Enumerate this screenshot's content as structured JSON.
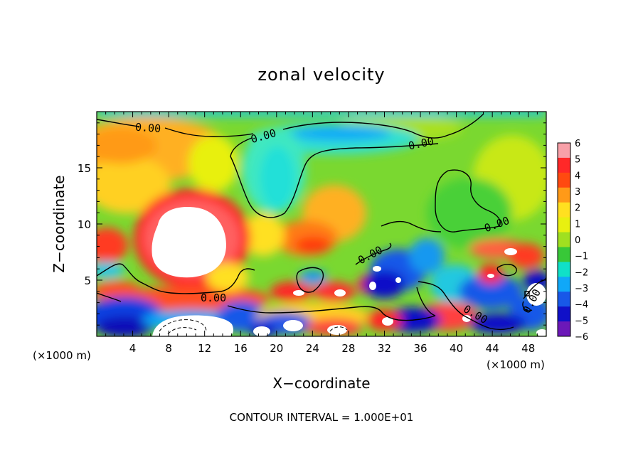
{
  "chart_data": {
    "type": "heatmap",
    "title": "zonal velocity",
    "xlabel": "X−coordinate",
    "ylabel": "Z−coordinate",
    "x_unit_left": "(×1000 m)",
    "x_unit_right": "(×1000 m)",
    "xlim": [
      0,
      50
    ],
    "ylim": [
      0,
      20
    ],
    "xticks": [
      "4",
      "8",
      "12",
      "16",
      "20",
      "24",
      "28",
      "32",
      "36",
      "40",
      "44",
      "48"
    ],
    "yticks": [
      "5",
      "10",
      "15"
    ],
    "contour_label": "0.00",
    "footer": "CONTOUR INTERVAL =  1.000E+01",
    "colorbar": {
      "range": [
        -6,
        6
      ],
      "ticks": [
        "6",
        "5",
        "4",
        "3",
        "2",
        "1",
        "0",
        "−1",
        "−2",
        "−3",
        "−4",
        "−5",
        "−6"
      ],
      "colors": [
        "#f8a0a8",
        "#ff2828",
        "#ff4a10",
        "#ff9a18",
        "#ffe020",
        "#e8f010",
        "#a0e020",
        "#38c838",
        "#10e0c8",
        "#10a8f8",
        "#1858e8",
        "#1010c8",
        "#6c18b8"
      ]
    },
    "grid": false,
    "legend": "right"
  }
}
